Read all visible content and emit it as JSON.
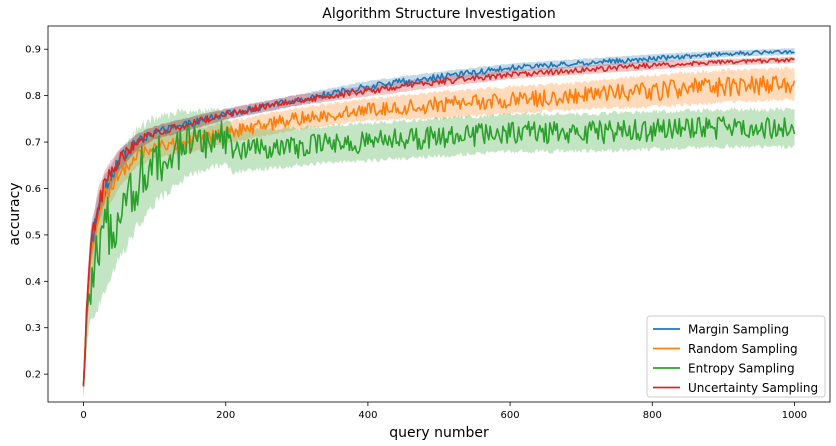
{
  "chart_data": {
    "type": "line",
    "title": "Algorithm Structure Investigation",
    "xlabel": "query number",
    "ylabel": "accuracy",
    "xlim": [
      -50,
      1050
    ],
    "ylim": [
      0.14,
      0.95
    ],
    "xticks": [
      0,
      200,
      400,
      600,
      800,
      1000
    ],
    "yticks": [
      0.2,
      0.3,
      0.4,
      0.5,
      0.6,
      0.7,
      0.8,
      0.9
    ],
    "grid": false,
    "legend_position": "lower-right",
    "shaded_band": true,
    "series": [
      {
        "name": "Margin Sampling",
        "color": "#1f77b4",
        "x": [
          0,
          5,
          10,
          20,
          30,
          50,
          75,
          100,
          150,
          200,
          300,
          400,
          500,
          600,
          700,
          800,
          900,
          1000
        ],
        "values": [
          0.17,
          0.36,
          0.47,
          0.55,
          0.6,
          0.66,
          0.7,
          0.72,
          0.74,
          0.76,
          0.79,
          0.82,
          0.84,
          0.86,
          0.87,
          0.88,
          0.89,
          0.895
        ],
        "band": [
          0.012,
          0.025,
          0.03,
          0.03,
          0.025,
          0.02,
          0.015,
          0.012,
          0.012,
          0.01,
          0.01,
          0.01,
          0.01,
          0.008,
          0.008,
          0.008,
          0.006,
          0.006
        ]
      },
      {
        "name": "Random Sampling",
        "color": "#ff7f0e",
        "x": [
          0,
          5,
          10,
          20,
          30,
          50,
          75,
          100,
          150,
          200,
          300,
          400,
          500,
          600,
          700,
          800,
          900,
          1000
        ],
        "values": [
          0.17,
          0.35,
          0.44,
          0.53,
          0.58,
          0.63,
          0.67,
          0.69,
          0.7,
          0.72,
          0.75,
          0.77,
          0.78,
          0.79,
          0.8,
          0.81,
          0.82,
          0.825
        ],
        "band": [
          0.015,
          0.03,
          0.035,
          0.035,
          0.03,
          0.025,
          0.02,
          0.02,
          0.02,
          0.02,
          0.02,
          0.02,
          0.025,
          0.025,
          0.025,
          0.03,
          0.03,
          0.03
        ]
      },
      {
        "name": "Entropy Sampling",
        "color": "#2ca02c",
        "x": [
          0,
          5,
          10,
          20,
          30,
          50,
          75,
          100,
          150,
          200,
          210,
          300,
          400,
          500,
          600,
          700,
          800,
          900,
          1000
        ],
        "values": [
          0.17,
          0.33,
          0.39,
          0.45,
          0.5,
          0.56,
          0.62,
          0.66,
          0.7,
          0.71,
          0.68,
          0.69,
          0.7,
          0.71,
          0.72,
          0.72,
          0.725,
          0.73,
          0.73
        ],
        "band": [
          0.02,
          0.05,
          0.07,
          0.09,
          0.1,
          0.1,
          0.09,
          0.08,
          0.06,
          0.05,
          0.04,
          0.035,
          0.035,
          0.035,
          0.035,
          0.035,
          0.035,
          0.035,
          0.035
        ]
      },
      {
        "name": "Uncertainty Sampling",
        "color": "#d62728",
        "x": [
          0,
          5,
          10,
          20,
          30,
          50,
          75,
          100,
          150,
          200,
          300,
          400,
          500,
          600,
          700,
          800,
          900,
          1000
        ],
        "values": [
          0.17,
          0.37,
          0.48,
          0.56,
          0.61,
          0.66,
          0.7,
          0.72,
          0.74,
          0.76,
          0.79,
          0.81,
          0.83,
          0.845,
          0.855,
          0.865,
          0.872,
          0.877
        ],
        "band": [
          0.012,
          0.025,
          0.03,
          0.03,
          0.025,
          0.02,
          0.015,
          0.012,
          0.012,
          0.01,
          0.01,
          0.01,
          0.01,
          0.008,
          0.008,
          0.008,
          0.006,
          0.006
        ]
      }
    ]
  }
}
